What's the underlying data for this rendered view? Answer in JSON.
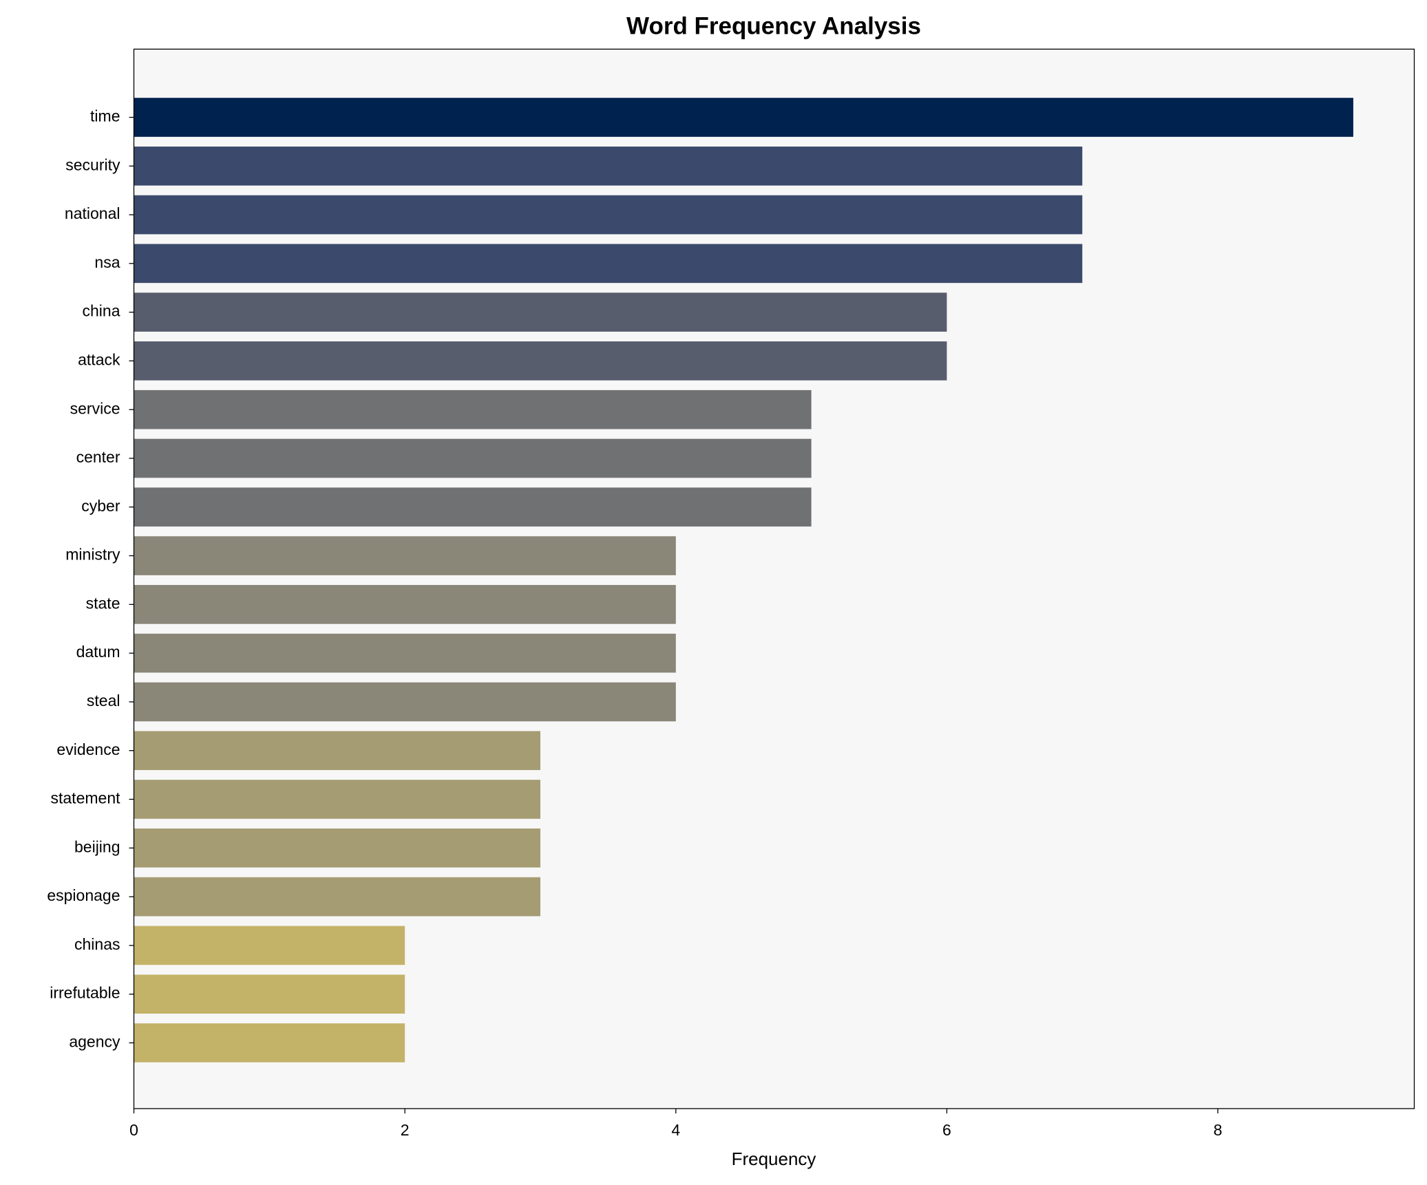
{
  "chart_data": {
    "type": "barh",
    "title": "Word Frequency Analysis",
    "x_label": "Frequency",
    "categories": [
      "time",
      "security",
      "national",
      "nsa",
      "china",
      "attack",
      "service",
      "center",
      "cyber",
      "ministry",
      "state",
      "datum",
      "steal",
      "evidence",
      "statement",
      "beijing",
      "espionage",
      "chinas",
      "irrefutable",
      "agency"
    ],
    "values": [
      9,
      7,
      7,
      7,
      6,
      6,
      5,
      5,
      5,
      4,
      4,
      4,
      4,
      3,
      3,
      3,
      3,
      2,
      2,
      2
    ],
    "colors": [
      "#00224e",
      "#3b496c",
      "#3b496c",
      "#3b496c",
      "#575d6d",
      "#575d6d",
      "#707173",
      "#707173",
      "#707173",
      "#8a8678",
      "#8a8678",
      "#8a8678",
      "#8a8678",
      "#a59c74",
      "#a59c74",
      "#a59c74",
      "#a59c74",
      "#c3b369",
      "#c3b369",
      "#c3b369"
    ],
    "xlim": [
      0,
      9.45
    ],
    "xticks": [
      0,
      2,
      4,
      6,
      8
    ],
    "grid": false,
    "background": "#f7f7f7"
  }
}
